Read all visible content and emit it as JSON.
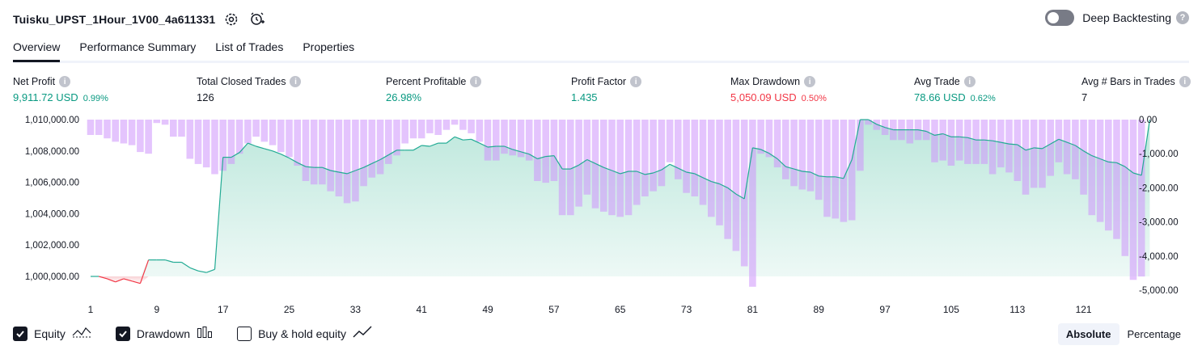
{
  "header": {
    "title": "Tuisku_UPST_1Hour_1V00_4a611331",
    "settings_icon": "gear-icon",
    "alert_icon": "add-alert-icon"
  },
  "deep_backtesting": {
    "label": "Deep Backtesting",
    "enabled": false,
    "help": "?"
  },
  "tabs": [
    {
      "label": "Overview",
      "active": true
    },
    {
      "label": "Performance Summary",
      "active": false
    },
    {
      "label": "List of Trades",
      "active": false
    },
    {
      "label": "Properties",
      "active": false
    }
  ],
  "metrics": [
    {
      "label": "Net Profit",
      "value": "9,911.72 USD",
      "pct": "0.99%",
      "color": "green"
    },
    {
      "label": "Total Closed Trades",
      "value": "126",
      "pct": "",
      "color": "dark"
    },
    {
      "label": "Percent Profitable",
      "value": "26.98%",
      "pct": "",
      "color": "green"
    },
    {
      "label": "Profit Factor",
      "value": "1.435",
      "pct": "",
      "color": "green"
    },
    {
      "label": "Max Drawdown",
      "value": "5,050.09 USD",
      "pct": "0.50%",
      "color": "red"
    },
    {
      "label": "Avg Trade",
      "value": "78.66 USD",
      "pct": "0.62%",
      "color": "green"
    },
    {
      "label": "Avg # Bars in Trades",
      "value": "7",
      "pct": "",
      "color": "dark"
    }
  ],
  "legend": [
    {
      "label": "Equity",
      "checked": true,
      "icon": "equity-line-icon"
    },
    {
      "label": "Drawdown",
      "checked": true,
      "icon": "drawdown-bars-icon"
    },
    {
      "label": "Buy & hold equity",
      "checked": false,
      "icon": "buy-hold-line-icon"
    }
  ],
  "modes": [
    {
      "label": "Absolute",
      "active": true
    },
    {
      "label": "Percentage",
      "active": false
    }
  ],
  "colors": {
    "equity_line": "#22ab94",
    "equity_fill": "#b9e6da",
    "equity_neg": "#f23645",
    "drawdown": "#ce93fc",
    "green": "#089981",
    "red": "#f23645"
  },
  "chart_data": {
    "type": "area",
    "x_ticks": [
      "1",
      "9",
      "17",
      "25",
      "33",
      "41",
      "49",
      "57",
      "65",
      "73",
      "81",
      "89",
      "97",
      "105",
      "113",
      "121"
    ],
    "y_left_ticks": [
      "1,010,000.00",
      "1,008,000.00",
      "1,006,000.00",
      "1,004,000.00",
      "1,002,000.00",
      "1,000,000.00"
    ],
    "y_right_ticks": [
      "0.00",
      "-1,000.00",
      "-2,000.00",
      "-3,000.00",
      "-4,000.00",
      "-5,000.00"
    ],
    "ylim_equity": [
      1000000,
      1010000
    ],
    "ylim_drawdown": [
      -5000,
      0
    ],
    "series": [
      {
        "name": "Equity",
        "values": [
          1000000,
          1000000,
          999850,
          999650,
          999850,
          999700,
          999550,
          1001050,
          1001050,
          1001050,
          1000900,
          1000900,
          1000550,
          1000350,
          1000250,
          1000450,
          1007600,
          1007600,
          1007900,
          1008500,
          1008300,
          1008150,
          1008000,
          1007800,
          1007550,
          1007250,
          1007000,
          1006950,
          1006950,
          1006750,
          1006650,
          1006550,
          1006750,
          1006950,
          1007200,
          1007450,
          1007750,
          1008050,
          1008050,
          1008050,
          1008350,
          1008300,
          1008500,
          1008500,
          1008900,
          1008700,
          1008750,
          1008500,
          1008250,
          1008300,
          1008300,
          1008100,
          1007950,
          1007800,
          1007500,
          1007650,
          1007700,
          1006850,
          1006850,
          1007100,
          1007450,
          1007200,
          1006950,
          1006750,
          1006550,
          1006700,
          1006700,
          1006500,
          1006600,
          1006800,
          1007150,
          1006900,
          1006650,
          1006550,
          1006300,
          1006050,
          1005900,
          1005650,
          1005250,
          1004950,
          1008200,
          1008100,
          1007850,
          1007500,
          1007000,
          1006850,
          1006700,
          1006650,
          1006400,
          1006350,
          1006350,
          1006250,
          1007450,
          1010000,
          1010000,
          1009700,
          1009500,
          1009350,
          1009350,
          1009350,
          1009350,
          1009250,
          1009000,
          1009100,
          1008900,
          1008900,
          1008850,
          1008700,
          1008700,
          1008650,
          1008550,
          1008450,
          1008400,
          1008050,
          1008200,
          1008150,
          1008450,
          1008750,
          1008550,
          1008350,
          1008000,
          1007700,
          1007500,
          1007300,
          1007250,
          1007000,
          1006600,
          1006450,
          1010000
        ]
      },
      {
        "name": "Drawdown",
        "values": [
          -450,
          -450,
          -550,
          -650,
          -700,
          -750,
          -950,
          -1000,
          -100,
          -150,
          -500,
          -500,
          -1150,
          -1300,
          -1400,
          -1600,
          -1500,
          -1300,
          -1000,
          -700,
          -500,
          -650,
          -750,
          -950,
          -1100,
          -1350,
          -1800,
          -1900,
          -1900,
          -2100,
          -2250,
          -2450,
          -2400,
          -1950,
          -1700,
          -1600,
          -1300,
          -1050,
          -700,
          -550,
          -550,
          -400,
          -450,
          -300,
          -150,
          -300,
          -400,
          -650,
          -1200,
          -1200,
          -1000,
          -1050,
          -1100,
          -1200,
          -1800,
          -1850,
          -1800,
          -2800,
          -2800,
          -2550,
          -2200,
          -2600,
          -2700,
          -2800,
          -2850,
          -2800,
          -2500,
          -2250,
          -2100,
          -1950,
          -1250,
          -1750,
          -2150,
          -2250,
          -2500,
          -2850,
          -3100,
          -3500,
          -3850,
          -4300,
          -4900,
          -1000,
          -1100,
          -1400,
          -1750,
          -1950,
          -2050,
          -2100,
          -2350,
          -2850,
          -2900,
          -3000,
          -2950,
          -1500,
          -150,
          -300,
          -450,
          -600,
          -600,
          -700,
          -600,
          -600,
          -1250,
          -1200,
          -1350,
          -1200,
          -1300,
          -1300,
          -1300,
          -1600,
          -1400,
          -1550,
          -1800,
          -2200,
          -2000,
          -2000,
          -1650,
          -1250,
          -1600,
          -1750,
          -2200,
          -2800,
          -3000,
          -3250,
          -3500,
          -4000,
          -4700,
          -4600
        ]
      }
    ]
  }
}
